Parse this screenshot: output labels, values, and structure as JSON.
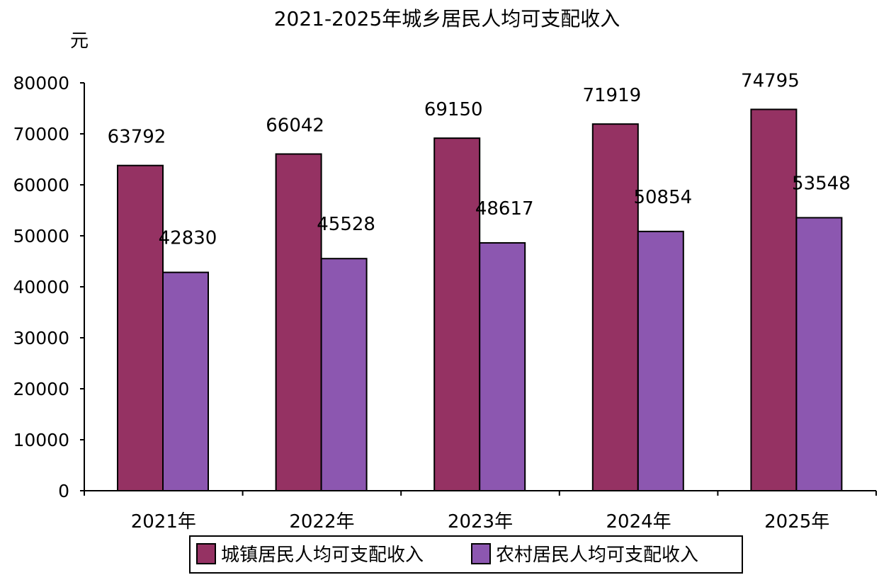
{
  "chart_data": {
    "type": "bar",
    "title": "2021-2025年城乡居民人均可支配收入",
    "ylabel": "元",
    "xlabel": "",
    "categories": [
      "2021年",
      "2022年",
      "2023年",
      "2024年",
      "2025年"
    ],
    "ylim": [
      0,
      80000
    ],
    "yticks": [
      0,
      10000,
      20000,
      30000,
      40000,
      50000,
      60000,
      70000,
      80000
    ],
    "grid": false,
    "legend_position": "bottom",
    "series": [
      {
        "name": "城镇居民人均可支配收入",
        "color": "#953263",
        "values": [
          63792,
          66042,
          69150,
          71919,
          74795
        ]
      },
      {
        "name": "农村居民人均可支配收入",
        "color": "#8c57b0",
        "values": [
          42830,
          45528,
          48617,
          50854,
          53548
        ]
      }
    ]
  }
}
